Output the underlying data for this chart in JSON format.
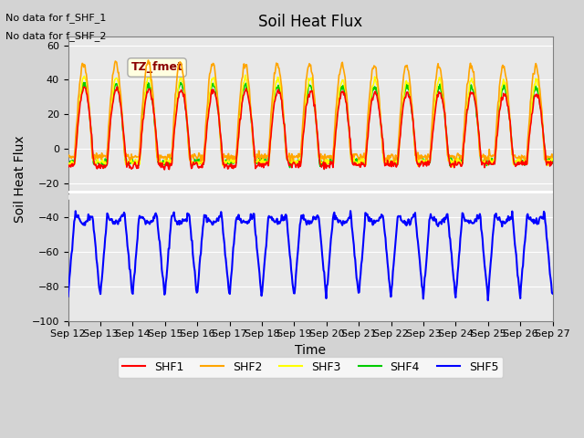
{
  "title": "Soil Heat Flux",
  "xlabel": "Time",
  "ylabel": "Soil Heat Flux",
  "ylim": [
    -100,
    65
  ],
  "yticks": [
    -100,
    -80,
    -60,
    -40,
    -20,
    0,
    20,
    40,
    60
  ],
  "text_no_data1": "No data for f_SHF_1",
  "text_no_data2": "No data for f_SHF_2",
  "annotation_label": "TZ_fmet",
  "colors": {
    "SHF1": "#ff0000",
    "SHF2": "#ffa500",
    "SHF3": "#ffff00",
    "SHF4": "#00cc00",
    "SHF5": "#0000ff"
  },
  "legend_labels": [
    "SHF1",
    "SHF2",
    "SHF3",
    "SHF4",
    "SHF5"
  ],
  "x_tick_labels": [
    "Sep 12",
    "Sep 13",
    "Sep 14",
    "Sep 15",
    "Sep 16",
    "Sep 17",
    "Sep 18",
    "Sep 19",
    "Sep 20",
    "Sep 21",
    "Sep 22",
    "Sep 23",
    "Sep 24",
    "Sep 25",
    "Sep 26",
    "Sep 27"
  ],
  "background_color": "#d3d3d3",
  "plot_bg_color": "#e8e8e8",
  "grid_color": "#ffffff"
}
